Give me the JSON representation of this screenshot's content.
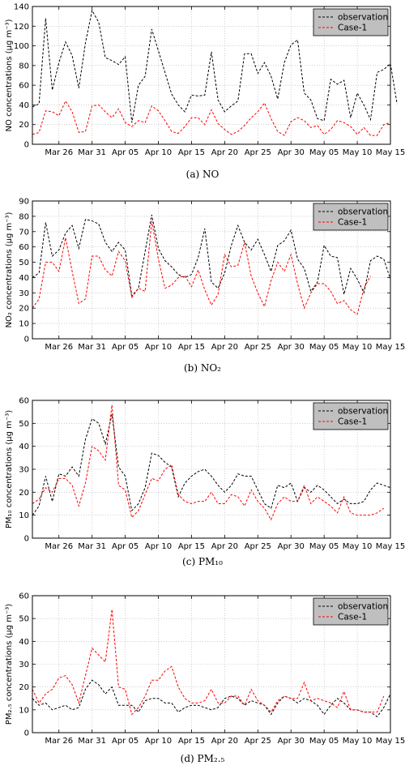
{
  "colors": {
    "observation": "#000000",
    "case1": "#ff0000",
    "grid": "#b0b0b0",
    "legend_bg": "#bfbfbf"
  },
  "x_ticks": [
    "Mar 26",
    "Mar 31",
    "Apr 05",
    "Apr 10",
    "Apr 15",
    "Apr 20",
    "Apr 25",
    "Apr 30",
    "May 05",
    "May 10",
    "May 15"
  ],
  "x_range": [
    "Mar 22",
    "May 15"
  ],
  "chart_data": [
    {
      "type": "line",
      "caption": "(a) NO",
      "ylabel": "NO concentrations (μg m⁻³)",
      "ylim": [
        0,
        140
      ],
      "yticks": [
        0,
        20,
        40,
        60,
        80,
        100,
        120,
        140
      ],
      "legend": "top-right",
      "grid": true,
      "series": [
        {
          "name": "observation",
          "start": "Mar 22",
          "values": [
            38,
            41,
            128,
            55,
            83,
            104,
            90,
            57,
            103,
            136,
            124,
            88,
            85,
            81,
            89,
            22,
            60,
            69,
            117,
            95,
            73,
            51,
            40,
            33,
            50,
            49,
            50,
            94,
            45,
            33,
            39,
            44,
            92,
            92,
            72,
            83,
            69,
            46,
            83,
            101,
            106,
            52,
            45,
            26,
            24,
            66,
            61,
            65,
            27,
            52,
            40,
            25,
            73,
            76,
            82,
            41
          ]
        },
        {
          "name": "Case-1",
          "start": "Mar 22",
          "values": [
            10,
            12,
            34,
            33,
            29,
            44,
            33,
            12,
            13,
            39,
            40,
            33,
            27,
            36,
            22,
            18,
            24,
            22,
            39,
            34,
            24,
            13,
            11,
            18,
            27,
            27,
            20,
            35,
            21,
            15,
            10,
            13,
            19,
            27,
            33,
            42,
            26,
            13,
            9,
            23,
            27,
            24,
            17,
            19,
            10,
            15,
            24,
            22,
            18,
            10,
            17,
            9,
            9,
            20,
            22,
            null
          ]
        }
      ]
    },
    {
      "type": "line",
      "caption": "(b) NO₂",
      "ylabel": "NO₂ concentrations (μg m⁻³)",
      "ylim": [
        0,
        90
      ],
      "yticks": [
        0,
        10,
        20,
        30,
        40,
        50,
        60,
        70,
        80,
        90
      ],
      "legend": "top-right",
      "grid": true,
      "series": [
        {
          "name": "observation",
          "start": "Mar 22",
          "values": [
            40,
            43,
            76,
            54,
            58,
            69,
            74,
            59,
            78,
            77,
            75,
            63,
            57,
            63,
            58,
            28,
            33,
            57,
            81,
            59,
            51,
            47,
            42,
            40,
            42,
            53,
            72,
            37,
            33,
            43,
            61,
            74,
            63,
            58,
            65,
            55,
            44,
            61,
            64,
            71,
            52,
            46,
            31,
            37,
            61,
            54,
            53,
            29,
            46,
            39,
            30,
            51,
            54,
            52,
            39
          ]
        },
        {
          "name": "Case-1",
          "start": "Mar 22",
          "values": [
            20,
            26,
            50,
            50,
            44,
            66,
            44,
            23,
            26,
            54,
            54,
            45,
            41,
            57,
            51,
            27,
            33,
            31,
            77,
            52,
            33,
            35,
            40,
            41,
            34,
            45,
            32,
            22,
            29,
            55,
            47,
            48,
            63,
            41,
            30,
            21,
            38,
            50,
            44,
            55,
            36,
            20,
            30,
            36,
            36,
            31,
            23,
            25,
            19,
            16,
            33,
            41,
            null,
            null,
            null
          ]
        }
      ]
    },
    {
      "type": "line",
      "caption": "(c) PM₁₀",
      "ylabel": "PM₁₀ concentrations (μg m⁻³)",
      "ylim": [
        0,
        60
      ],
      "yticks": [
        0,
        10,
        20,
        30,
        40,
        50,
        60
      ],
      "legend": "top-right",
      "grid": true,
      "series": [
        {
          "name": "observation",
          "start": "Mar 22",
          "values": [
            10,
            14,
            27,
            16,
            28,
            27,
            31,
            27,
            43,
            52,
            50,
            41,
            54,
            31,
            27,
            12,
            15,
            22,
            37,
            36,
            33,
            31,
            18,
            24,
            27,
            29,
            30,
            27,
            23,
            20,
            23,
            28,
            27,
            27,
            21,
            15,
            13,
            23,
            22,
            24,
            16,
            22,
            20,
            23,
            21,
            18,
            15,
            17,
            15,
            15,
            16,
            21,
            24,
            23,
            22
          ]
        },
        {
          "name": "Case-1",
          "start": "Mar 22",
          "values": [
            15,
            17,
            22,
            20,
            26,
            26,
            23,
            14,
            24,
            40,
            38,
            34,
            58,
            23,
            21,
            9,
            12,
            19,
            26,
            25,
            30,
            32,
            19,
            16,
            15,
            16,
            16,
            20,
            15,
            15,
            19,
            18,
            14,
            21,
            16,
            13,
            8,
            15,
            18,
            16,
            16,
            23,
            15,
            18,
            16,
            14,
            11,
            18,
            11,
            10,
            10,
            10,
            11,
            13,
            null
          ]
        }
      ]
    },
    {
      "type": "line",
      "caption": "(d) PM₂.₅",
      "ylabel": "PM₂.₅ concentrations (μg m⁻³)",
      "ylim": [
        0,
        60
      ],
      "yticks": [
        0,
        10,
        20,
        30,
        40,
        50,
        60
      ],
      "legend": "top-right",
      "grid": true,
      "series": [
        {
          "name": "observation",
          "start": "Mar 22",
          "values": [
            15,
            12,
            13,
            10,
            11,
            12,
            10,
            11,
            19,
            23,
            21,
            17,
            20,
            12,
            12,
            12,
            9,
            14,
            15,
            15,
            13,
            13,
            9,
            11,
            12,
            12,
            11,
            10,
            11,
            15,
            16,
            15,
            12,
            14,
            13,
            12,
            8,
            13,
            16,
            15,
            13,
            15,
            14,
            12,
            8,
            12,
            15,
            13,
            10,
            10,
            9,
            9,
            7,
            11,
            17
          ]
        },
        {
          "name": "Case-1",
          "start": "Mar 22",
          "values": [
            19,
            13,
            17,
            19,
            24,
            25,
            21,
            13,
            25,
            37,
            34,
            31,
            54,
            20,
            19,
            8,
            11,
            16,
            23,
            23,
            27,
            29,
            20,
            15,
            13,
            13,
            14,
            19,
            13,
            13,
            16,
            16,
            12,
            19,
            14,
            12,
            9,
            14,
            16,
            15,
            15,
            22,
            14,
            15,
            14,
            13,
            11,
            18,
            10,
            10,
            9,
            9,
            9,
            16,
            null
          ]
        }
      ]
    }
  ]
}
